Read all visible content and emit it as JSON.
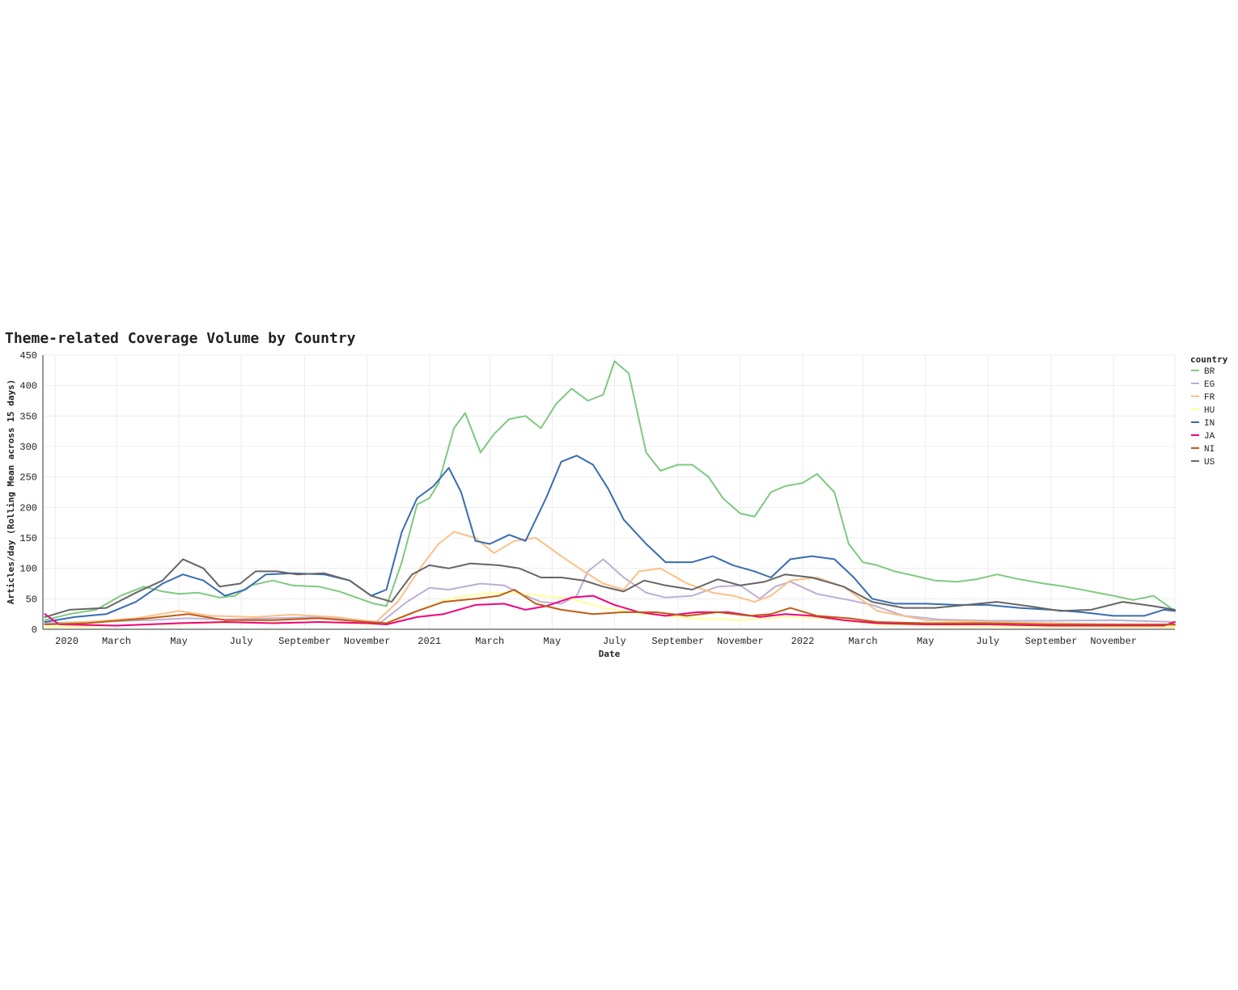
{
  "chart_data": {
    "type": "line",
    "title": "Theme-related Coverage Volume by Country",
    "xlabel": "Date",
    "ylabel": "Articles/day (Rolling Mean across 15 days)",
    "ylim": [
      0,
      450
    ],
    "yticks": [
      0,
      50,
      100,
      150,
      200,
      250,
      300,
      350,
      400,
      450
    ],
    "xlim": [
      "2019-12-20",
      "2022-12-31"
    ],
    "xticks": [
      {
        "date": "2020-01-01",
        "label": "2020"
      },
      {
        "date": "2020-03-01",
        "label": "March"
      },
      {
        "date": "2020-05-01",
        "label": "May"
      },
      {
        "date": "2020-07-01",
        "label": "July"
      },
      {
        "date": "2020-09-01",
        "label": "September"
      },
      {
        "date": "2020-11-01",
        "label": "November"
      },
      {
        "date": "2021-01-01",
        "label": "2021"
      },
      {
        "date": "2021-03-01",
        "label": "March"
      },
      {
        "date": "2021-05-01",
        "label": "May"
      },
      {
        "date": "2021-07-01",
        "label": "July"
      },
      {
        "date": "2021-09-01",
        "label": "September"
      },
      {
        "date": "2021-11-01",
        "label": "November"
      },
      {
        "date": "2022-01-01",
        "label": "2022"
      },
      {
        "date": "2022-03-01",
        "label": "March"
      },
      {
        "date": "2022-05-01",
        "label": "May"
      },
      {
        "date": "2022-07-01",
        "label": "July"
      },
      {
        "date": "2022-09-01",
        "label": "September"
      },
      {
        "date": "2022-11-01",
        "label": "November"
      }
    ],
    "grid": true,
    "legend": {
      "title": "country",
      "position": "right"
    },
    "series": [
      {
        "name": "BR",
        "color": "#7fc97f",
        "x": [
          "2019-12-22",
          "2020-01-15",
          "2020-02-10",
          "2020-03-05",
          "2020-03-28",
          "2020-04-15",
          "2020-05-01",
          "2020-05-20",
          "2020-06-10",
          "2020-06-25",
          "2020-07-10",
          "2020-08-01",
          "2020-08-20",
          "2020-09-15",
          "2020-10-05",
          "2020-10-25",
          "2020-11-08",
          "2020-11-20",
          "2020-12-05",
          "2020-12-20",
          "2021-01-01",
          "2021-01-10",
          "2021-01-25",
          "2021-02-05",
          "2021-02-20",
          "2021-03-05",
          "2021-03-20",
          "2021-04-05",
          "2021-04-20",
          "2021-05-05",
          "2021-05-20",
          "2021-06-05",
          "2021-06-20",
          "2021-07-01",
          "2021-07-15",
          "2021-08-01",
          "2021-08-15",
          "2021-09-01",
          "2021-09-15",
          "2021-10-01",
          "2021-10-15",
          "2021-11-01",
          "2021-11-15",
          "2021-12-01",
          "2021-12-15",
          "2022-01-01",
          "2022-01-15",
          "2022-02-01",
          "2022-02-15",
          "2022-03-01",
          "2022-03-15",
          "2022-04-01",
          "2022-04-20",
          "2022-05-10",
          "2022-06-01",
          "2022-06-20",
          "2022-07-10",
          "2022-08-01",
          "2022-08-25",
          "2022-09-15",
          "2022-10-10",
          "2022-11-01",
          "2022-11-20",
          "2022-12-10",
          "2022-12-31"
        ],
        "y": [
          15,
          25,
          32,
          55,
          70,
          62,
          58,
          60,
          52,
          55,
          72,
          80,
          72,
          70,
          62,
          50,
          42,
          38,
          110,
          205,
          215,
          240,
          330,
          355,
          290,
          320,
          345,
          350,
          330,
          370,
          395,
          375,
          385,
          440,
          420,
          290,
          260,
          270,
          270,
          250,
          215,
          190,
          185,
          225,
          235,
          240,
          255,
          225,
          140,
          110,
          105,
          95,
          88,
          80,
          78,
          82,
          90,
          82,
          75,
          70,
          62,
          55,
          48,
          55,
          30
        ]
      },
      {
        "name": "EG",
        "color": "#beaed4",
        "x": [
          "2019-12-22",
          "2020-02-01",
          "2020-04-01",
          "2020-05-10",
          "2020-06-15",
          "2020-08-01",
          "2020-09-15",
          "2020-10-20",
          "2020-11-15",
          "2020-12-10",
          "2021-01-01",
          "2021-01-20",
          "2021-02-20",
          "2021-03-15",
          "2021-04-01",
          "2021-04-20",
          "2021-05-10",
          "2021-05-25",
          "2021-06-05",
          "2021-06-20",
          "2021-07-10",
          "2021-08-01",
          "2021-08-20",
          "2021-09-15",
          "2021-10-10",
          "2021-11-01",
          "2021-11-20",
          "2021-12-05",
          "2021-12-20",
          "2022-01-15",
          "2022-02-15",
          "2022-03-10",
          "2022-04-10",
          "2022-05-15",
          "2022-07-01",
          "2022-09-01",
          "2022-11-01",
          "2022-12-31"
        ],
        "y": [
          10,
          12,
          15,
          18,
          16,
          18,
          20,
          15,
          12,
          45,
          68,
          65,
          75,
          72,
          58,
          45,
          42,
          55,
          95,
          115,
          85,
          60,
          52,
          55,
          70,
          72,
          50,
          70,
          78,
          58,
          48,
          40,
          22,
          16,
          14,
          14,
          15,
          12
        ]
      },
      {
        "name": "FR",
        "color": "#fdc086",
        "x": [
          "2019-12-22",
          "2020-02-01",
          "2020-03-20",
          "2020-05-01",
          "2020-06-01",
          "2020-07-15",
          "2020-08-20",
          "2020-10-01",
          "2020-11-10",
          "2020-12-01",
          "2020-12-25",
          "2021-01-10",
          "2021-01-25",
          "2021-02-15",
          "2021-03-05",
          "2021-03-25",
          "2021-04-15",
          "2021-05-10",
          "2021-06-01",
          "2021-06-20",
          "2021-07-10",
          "2021-07-25",
          "2021-08-15",
          "2021-09-10",
          "2021-10-05",
          "2021-10-25",
          "2021-11-15",
          "2021-12-01",
          "2021-12-20",
          "2022-01-15",
          "2022-02-10",
          "2022-03-15",
          "2022-05-01",
          "2022-07-01",
          "2022-09-01",
          "2022-11-01",
          "2022-12-31"
        ],
        "y": [
          8,
          12,
          18,
          30,
          22,
          20,
          24,
          20,
          12,
          45,
          105,
          140,
          160,
          150,
          125,
          145,
          150,
          120,
          95,
          75,
          65,
          95,
          100,
          75,
          60,
          55,
          45,
          55,
          80,
          85,
          70,
          30,
          15,
          12,
          10,
          8,
          6
        ]
      },
      {
        "name": "HU",
        "color": "#ffff99",
        "x": [
          "2019-12-22",
          "2020-03-01",
          "2020-06-01",
          "2020-09-01",
          "2020-11-15",
          "2020-12-20",
          "2021-01-20",
          "2021-02-20",
          "2021-03-20",
          "2021-04-20",
          "2021-05-20",
          "2021-06-20",
          "2021-08-01",
          "2021-09-15",
          "2021-11-01",
          "2021-12-15",
          "2022-01-20",
          "2022-03-15",
          "2022-06-01",
          "2022-09-01",
          "2022-12-31"
        ],
        "y": [
          3,
          6,
          10,
          12,
          8,
          30,
          50,
          58,
          60,
          55,
          50,
          35,
          25,
          18,
          15,
          20,
          18,
          8,
          5,
          4,
          3
        ]
      },
      {
        "name": "IN",
        "color": "#386cb0",
        "x": [
          "2019-12-22",
          "2020-01-20",
          "2020-02-20",
          "2020-03-20",
          "2020-04-15",
          "2020-05-05",
          "2020-05-25",
          "2020-06-15",
          "2020-07-05",
          "2020-07-25",
          "2020-08-20",
          "2020-09-20",
          "2020-10-15",
          "2020-11-05",
          "2020-11-20",
          "2020-12-05",
          "2020-12-20",
          "2021-01-05",
          "2021-01-20",
          "2021-02-01",
          "2021-02-15",
          "2021-03-01",
          "2021-03-20",
          "2021-04-05",
          "2021-04-25",
          "2021-05-10",
          "2021-05-25",
          "2021-06-10",
          "2021-06-25",
          "2021-07-10",
          "2021-08-01",
          "2021-08-20",
          "2021-09-15",
          "2021-10-05",
          "2021-10-25",
          "2021-11-15",
          "2021-12-01",
          "2021-12-20",
          "2022-01-10",
          "2022-02-01",
          "2022-02-20",
          "2022-03-10",
          "2022-04-01",
          "2022-05-01",
          "2022-06-01",
          "2022-07-01",
          "2022-08-01",
          "2022-09-01",
          "2022-10-01",
          "2022-11-01",
          "2022-12-01",
          "2022-12-20",
          "2022-12-31"
        ],
        "y": [
          12,
          20,
          25,
          45,
          75,
          90,
          80,
          55,
          65,
          90,
          92,
          90,
          80,
          55,
          65,
          160,
          215,
          235,
          265,
          225,
          145,
          140,
          155,
          145,
          215,
          275,
          285,
          270,
          230,
          180,
          140,
          110,
          110,
          120,
          105,
          95,
          85,
          115,
          120,
          115,
          85,
          50,
          42,
          42,
          40,
          40,
          35,
          32,
          28,
          22,
          22,
          32,
          30
        ]
      },
      {
        "name": "JA",
        "color": "#f0027f",
        "x": [
          "2019-12-22",
          "2020-01-05",
          "2020-03-01",
          "2020-05-01",
          "2020-06-15",
          "2020-08-01",
          "2020-09-15",
          "2020-11-01",
          "2020-11-20",
          "2020-12-20",
          "2021-01-15",
          "2021-02-15",
          "2021-03-15",
          "2021-04-05",
          "2021-04-25",
          "2021-05-20",
          "2021-06-10",
          "2021-07-01",
          "2021-07-25",
          "2021-08-20",
          "2021-09-20",
          "2021-10-20",
          "2021-11-20",
          "2021-12-15",
          "2022-01-10",
          "2022-02-10",
          "2022-03-15",
          "2022-05-01",
          "2022-07-01",
          "2022-09-01",
          "2022-11-01",
          "2022-12-20",
          "2022-12-31"
        ],
        "y": [
          25,
          8,
          6,
          10,
          12,
          10,
          12,
          10,
          8,
          20,
          25,
          40,
          42,
          32,
          38,
          52,
          55,
          40,
          28,
          22,
          28,
          28,
          20,
          25,
          22,
          15,
          10,
          8,
          8,
          6,
          6,
          6,
          12
        ]
      },
      {
        "name": "NI",
        "color": "#bf5b17",
        "x": [
          "2019-12-22",
          "2020-02-01",
          "2020-04-01",
          "2020-05-10",
          "2020-06-15",
          "2020-08-01",
          "2020-09-15",
          "2020-11-01",
          "2020-11-20",
          "2020-12-20",
          "2021-01-15",
          "2021-02-15",
          "2021-03-10",
          "2021-03-25",
          "2021-04-15",
          "2021-05-10",
          "2021-06-10",
          "2021-07-10",
          "2021-08-10",
          "2021-09-10",
          "2021-10-10",
          "2021-11-10",
          "2021-12-01",
          "2021-12-20",
          "2022-01-15",
          "2022-02-15",
          "2022-03-15",
          "2022-05-01",
          "2022-07-01",
          "2022-09-01",
          "2022-11-01",
          "2022-12-31"
        ],
        "y": [
          8,
          10,
          18,
          25,
          15,
          15,
          18,
          12,
          10,
          30,
          45,
          50,
          55,
          65,
          42,
          32,
          25,
          28,
          28,
          22,
          28,
          22,
          25,
          35,
          22,
          18,
          12,
          10,
          10,
          8,
          8,
          8
        ]
      },
      {
        "name": "US",
        "color": "#666666",
        "x": [
          "2019-12-22",
          "2020-01-15",
          "2020-02-20",
          "2020-03-20",
          "2020-04-15",
          "2020-05-05",
          "2020-05-25",
          "2020-06-10",
          "2020-06-30",
          "2020-07-15",
          "2020-08-05",
          "2020-08-25",
          "2020-09-20",
          "2020-10-15",
          "2020-11-05",
          "2020-11-25",
          "2020-12-15",
          "2021-01-01",
          "2021-01-20",
          "2021-02-10",
          "2021-03-10",
          "2021-03-30",
          "2021-04-20",
          "2021-05-10",
          "2021-06-01",
          "2021-06-20",
          "2021-07-10",
          "2021-07-30",
          "2021-08-20",
          "2021-09-15",
          "2021-10-10",
          "2021-11-01",
          "2021-11-25",
          "2021-12-15",
          "2022-01-10",
          "2022-02-10",
          "2022-03-10",
          "2022-04-10",
          "2022-05-10",
          "2022-06-10",
          "2022-07-10",
          "2022-08-10",
          "2022-09-10",
          "2022-10-10",
          "2022-11-10",
          "2022-12-10",
          "2022-12-31"
        ],
        "y": [
          20,
          32,
          35,
          60,
          80,
          115,
          100,
          70,
          75,
          95,
          95,
          90,
          92,
          80,
          55,
          45,
          90,
          105,
          100,
          108,
          105,
          100,
          85,
          85,
          80,
          70,
          62,
          80,
          72,
          65,
          82,
          72,
          78,
          90,
          85,
          70,
          45,
          35,
          35,
          40,
          45,
          38,
          30,
          32,
          45,
          38,
          32
        ]
      }
    ]
  }
}
